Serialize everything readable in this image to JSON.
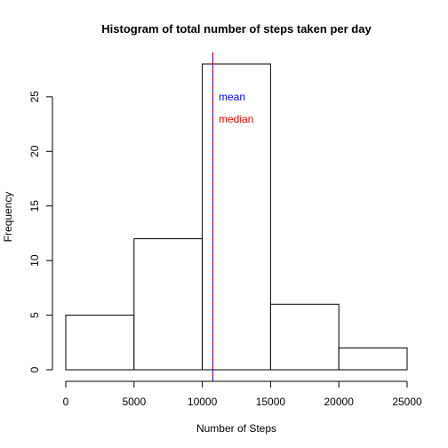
{
  "chart_data": {
    "type": "bar",
    "title": "Histogram of total number of steps taken per day",
    "xlabel": "Number of Steps",
    "ylabel": "Frequency",
    "bins": [
      {
        "start": 0,
        "end": 5000,
        "count": 5
      },
      {
        "start": 5000,
        "end": 10000,
        "count": 12
      },
      {
        "start": 10000,
        "end": 15000,
        "count": 28
      },
      {
        "start": 15000,
        "end": 20000,
        "count": 6
      },
      {
        "start": 20000,
        "end": 25000,
        "count": 2
      }
    ],
    "xlim": [
      0,
      25000
    ],
    "ylim": [
      0,
      28
    ],
    "x_ticks": [
      0,
      5000,
      10000,
      15000,
      20000,
      25000
    ],
    "y_ticks": [
      0,
      5,
      10,
      15,
      20,
      25
    ],
    "reference_lines": [
      {
        "label": "mean",
        "value": 10766,
        "color": "#0000ff"
      },
      {
        "label": "median",
        "value": 10766,
        "color": "#ff0000"
      }
    ],
    "grid": false
  }
}
